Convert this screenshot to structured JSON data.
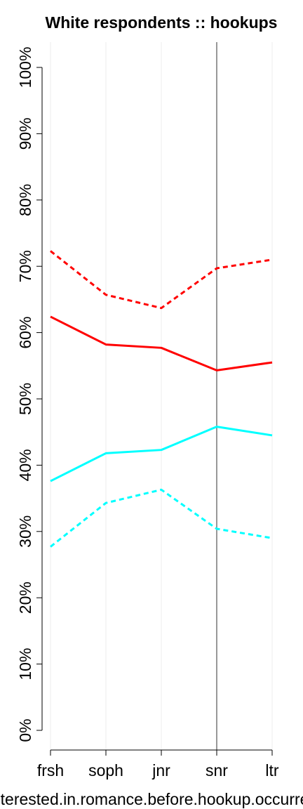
{
  "chart_data": {
    "type": "line",
    "title": "White respondents :: hookups",
    "xlabel": "interested.in.romance.before.hookup.occurred",
    "ylabel": "",
    "categories": [
      "frsh",
      "soph",
      "jnr",
      "snr",
      "ltr"
    ],
    "ylim": [
      0,
      1
    ],
    "yticks": [
      0,
      0.1,
      0.2,
      0.3,
      0.4,
      0.5,
      0.6,
      0.7,
      0.8,
      0.9,
      1.0
    ],
    "ytick_labels": [
      "0%",
      "10%",
      "20%",
      "30%",
      "40%",
      "50%",
      "60%",
      "70%",
      "80%",
      "90%",
      "100%"
    ],
    "grid": "vertical",
    "reference_line_at": "snr",
    "series": [
      {
        "values": [
          0.723,
          0.657,
          0.637,
          0.697,
          0.71
        ],
        "color": "#ff0000",
        "style": "dotted"
      },
      {
        "values": [
          0.624,
          0.582,
          0.577,
          0.543,
          0.555
        ],
        "color": "#ff0000",
        "style": "solid"
      },
      {
        "values": [
          0.376,
          0.418,
          0.423,
          0.458,
          0.445
        ],
        "color": "#00ffff",
        "style": "solid"
      },
      {
        "values": [
          0.277,
          0.343,
          0.363,
          0.304,
          0.29
        ],
        "color": "#00ffff",
        "style": "dotted"
      }
    ]
  }
}
